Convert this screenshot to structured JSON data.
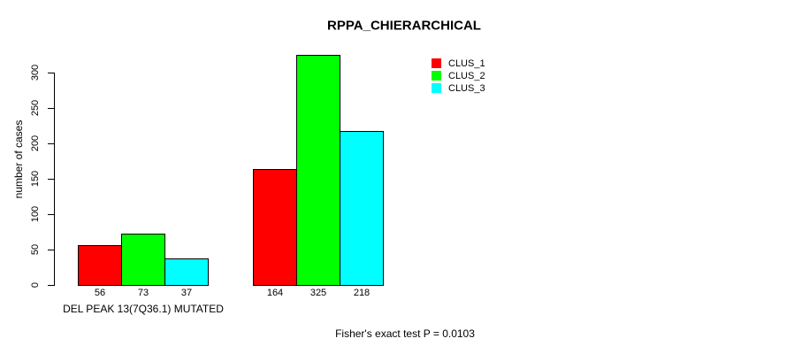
{
  "chart_data": {
    "type": "bar",
    "title": "RPPA_CHIERARCHICAL",
    "categories": [
      "DEL PEAK 13(7Q36.1) MUTATED",
      ""
    ],
    "series": [
      {
        "name": "CLUS_1",
        "color": "#ff0000",
        "values": [
          56,
          164
        ]
      },
      {
        "name": "CLUS_2",
        "color": "#00ff00",
        "values": [
          73,
          325
        ]
      },
      {
        "name": "CLUS_3",
        "color": "#00ffff",
        "values": [
          37,
          218
        ]
      }
    ],
    "xlabel": "",
    "ylabel": "number of cases",
    "ylim": [
      0,
      325
    ],
    "yticks": [
      0,
      50,
      100,
      150,
      200,
      250,
      300
    ],
    "grid": false,
    "bar_labels": true,
    "legend_position": "top-right",
    "annotation": "Fisher's exact test P = 0.0103",
    "axis_color": "#000000",
    "background_color": "#ffffff"
  }
}
